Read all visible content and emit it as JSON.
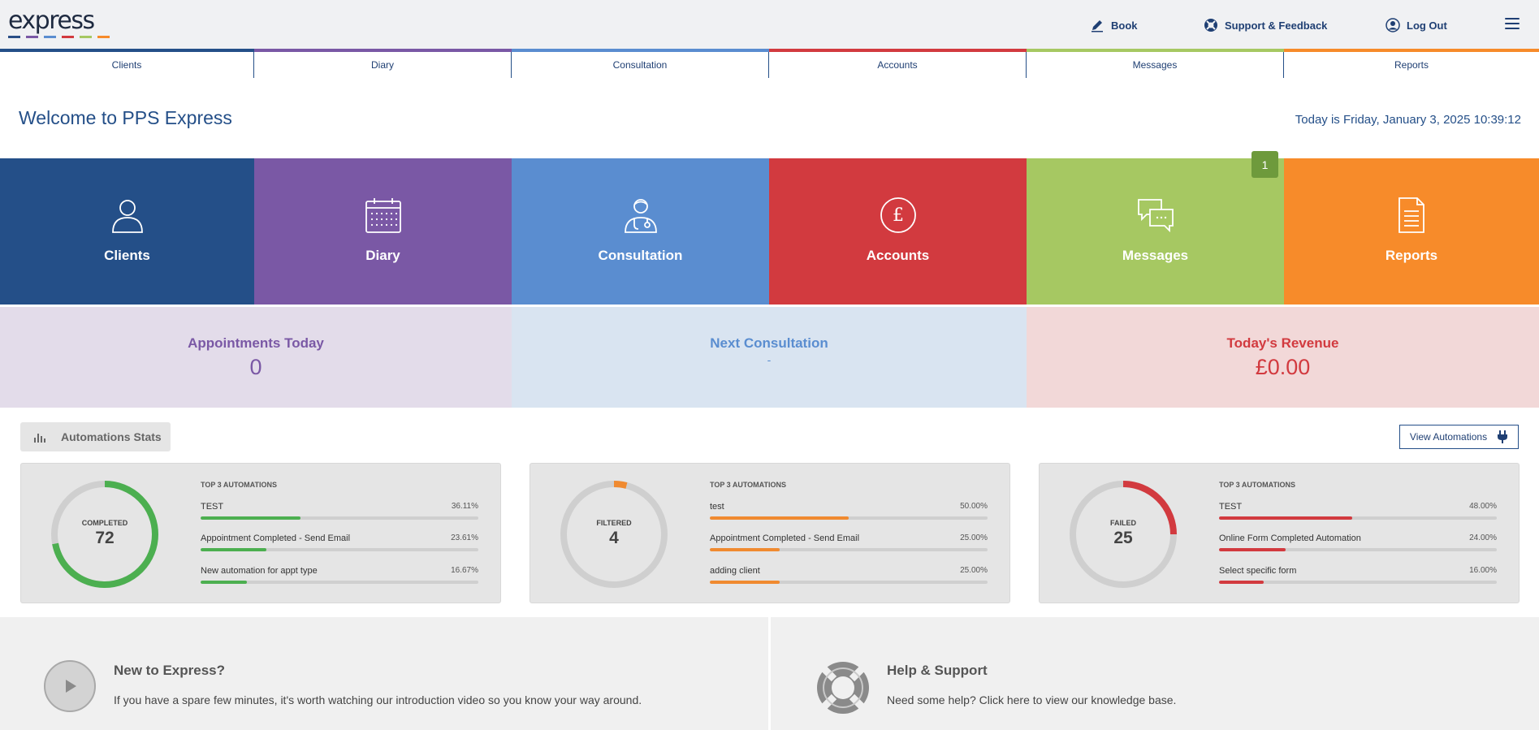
{
  "header": {
    "logo_text": "express",
    "logo_bar_colors": [
      "#2a4f86",
      "#7a58a5",
      "#5a8dd0",
      "#d23a3f",
      "#a6c862",
      "#f78b2a"
    ],
    "book_label": "Book",
    "support_label": "Support & Feedback",
    "logout_label": "Log Out"
  },
  "tabs": [
    {
      "label": "Clients",
      "color": "#244f88"
    },
    {
      "label": "Diary",
      "color": "#7a58a5"
    },
    {
      "label": "Consultation",
      "color": "#5a8dd0"
    },
    {
      "label": "Accounts",
      "color": "#d23a3f"
    },
    {
      "label": "Messages",
      "color": "#a6c862"
    },
    {
      "label": "Reports",
      "color": "#f78b2a"
    }
  ],
  "welcome": "Welcome to PPS Express",
  "today": "Today is Friday, January 3, 2025 10:39:12",
  "tiles": [
    {
      "label": "Clients",
      "color": "#244f88",
      "icon": "person-icon"
    },
    {
      "label": "Diary",
      "color": "#7a58a5",
      "icon": "calendar-icon"
    },
    {
      "label": "Consultation",
      "color": "#5a8dd0",
      "icon": "doctor-icon"
    },
    {
      "label": "Accounts",
      "color": "#d23a3f",
      "icon": "pound-icon"
    },
    {
      "label": "Messages",
      "color": "#a6c862",
      "icon": "chat-bubbles-icon"
    },
    {
      "label": "Reports",
      "color": "#f78b2a",
      "icon": "document-icon"
    }
  ],
  "messages_badge": "1",
  "stats": [
    {
      "label": "Appointments Today",
      "value": "0",
      "bg": "#e3dcea",
      "color": "#7a58a5"
    },
    {
      "label": "Next Consultation",
      "value": "-",
      "bg": "#d9e4f1",
      "color": "#5a8dd0"
    },
    {
      "label": "Today's Revenue",
      "value": "£0.00",
      "bg": "#f2d8d8",
      "color": "#d23a3f"
    }
  ],
  "automations": {
    "title": "Automations Stats",
    "view_button": "View Automations",
    "top3_label": "TOP 3 AUTOMATIONS",
    "cards": [
      {
        "status": "COMPLETED",
        "count": "72",
        "color": "#4caf50",
        "ring_fraction": 0.72,
        "rows": [
          {
            "name": "TEST",
            "pct": "36.11%",
            "value": 36.11
          },
          {
            "name": "Appointment Completed - Send Email",
            "pct": "23.61%",
            "value": 23.61
          },
          {
            "name": "New automation for appt type",
            "pct": "16.67%",
            "value": 16.67
          }
        ]
      },
      {
        "status": "FILTERED",
        "count": "4",
        "color": "#f08a30",
        "ring_fraction": 0.04,
        "rows": [
          {
            "name": "test",
            "pct": "50.00%",
            "value": 50
          },
          {
            "name": "Appointment Completed - Send Email",
            "pct": "25.00%",
            "value": 25
          },
          {
            "name": "adding client",
            "pct": "25.00%",
            "value": 25
          }
        ]
      },
      {
        "status": "FAILED",
        "count": "25",
        "color": "#d23a3f",
        "ring_fraction": 0.25,
        "rows": [
          {
            "name": "TEST",
            "pct": "48.00%",
            "value": 48
          },
          {
            "name": "Online Form Completed Automation",
            "pct": "24.00%",
            "value": 24
          },
          {
            "name": "Select specific form",
            "pct": "16.00%",
            "value": 16
          }
        ]
      }
    ]
  },
  "bottom": {
    "new_title": "New to Express?",
    "new_text": "If you have a spare few minutes, it's worth watching our introduction video so you know your way around.",
    "help_title": "Help & Support",
    "help_text": "Need some help? Click here to view our knowledge base."
  }
}
